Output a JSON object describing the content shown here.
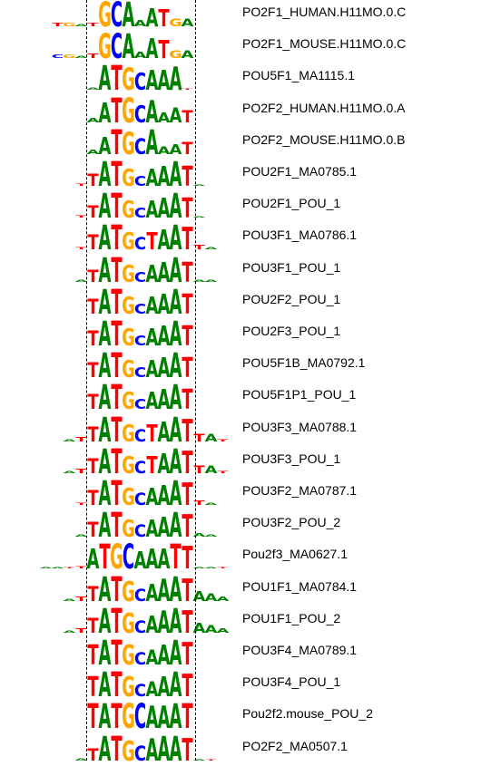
{
  "colors": {
    "A": "#008000",
    "C": "#0000ff",
    "G": "#ffa500",
    "T": "#ff0000"
  },
  "motifs": [
    {
      "name": "PO2F1_HUMAN.H11MO.0.C",
      "offset": 3,
      "seq": "TGATGCAAATGA",
      "heights": [
        0.15,
        0.15,
        0.1,
        0.15,
        1.0,
        1.0,
        1.0,
        0.25,
        0.75,
        0.7,
        0.3,
        0.3
      ]
    },
    {
      "name": "PO2F1_MOUSE.H11MO.0.C",
      "offset": 3,
      "seq": "CGATGCAAATGA",
      "heights": [
        0.15,
        0.15,
        0.1,
        0.2,
        1.0,
        1.0,
        1.0,
        0.25,
        0.8,
        0.75,
        0.3,
        0.3
      ]
    },
    {
      "name": "POU5F1_MA1115.1",
      "offset": 6,
      "seq": "AATGCAAAT",
      "heights": [
        0.1,
        1.0,
        1.0,
        0.9,
        0.7,
        0.8,
        0.8,
        0.95,
        0.05
      ]
    },
    {
      "name": "PO2F2_HUMAN.H11MO.0.A",
      "offset": 6,
      "seq": "AATGCAAAT",
      "heights": [
        0.2,
        0.8,
        1.0,
        1.0,
        0.7,
        0.9,
        0.4,
        0.6,
        0.5
      ]
    },
    {
      "name": "PO2F2_MOUSE.H11MO.0.B",
      "offset": 6,
      "seq": "AATGCAAAT",
      "heights": [
        0.2,
        0.7,
        1.0,
        0.9,
        0.65,
        1.0,
        0.3,
        0.4,
        0.5
      ]
    },
    {
      "name": "POU2F1_MA0785.1",
      "offset": 5,
      "seq": "TTATGCAAATA",
      "heights": [
        0.1,
        0.5,
        1.0,
        1.0,
        0.7,
        0.4,
        0.7,
        0.8,
        1.0,
        0.8,
        0.05
      ]
    },
    {
      "name": "POU2F1_POU_1",
      "offset": 5,
      "seq": "TTATGCAAATA",
      "heights": [
        0.1,
        0.5,
        1.0,
        1.0,
        0.7,
        0.4,
        0.7,
        0.8,
        1.0,
        0.8,
        0.05
      ]
    },
    {
      "name": "POU3F1_MA0786.1",
      "offset": 5,
      "seq": "TTATGCTAATTA",
      "heights": [
        0.1,
        0.6,
        1.0,
        1.0,
        0.7,
        0.5,
        0.7,
        0.8,
        1.0,
        0.9,
        0.2,
        0.1
      ]
    },
    {
      "name": "POU3F1_POU_1",
      "offset": 5,
      "seq": "ATATGCAAATAA",
      "heights": [
        0.1,
        0.5,
        1.0,
        1.0,
        0.7,
        0.4,
        0.7,
        0.8,
        1.0,
        0.8,
        0.1,
        0.1
      ]
    },
    {
      "name": "POU2F2_POU_1",
      "offset": 6,
      "seq": "TATGCAAAT",
      "heights": [
        0.6,
        1.0,
        1.0,
        0.7,
        0.4,
        0.7,
        0.8,
        1.0,
        0.8
      ]
    },
    {
      "name": "POU2F3_POU_1",
      "offset": 6,
      "seq": "TATGCAAAT",
      "heights": [
        0.6,
        1.0,
        1.0,
        0.7,
        0.4,
        0.7,
        0.8,
        1.0,
        0.8
      ]
    },
    {
      "name": "POU5F1B_MA0792.1",
      "offset": 6,
      "seq": "TATGCAAAT",
      "heights": [
        0.6,
        1.0,
        1.0,
        0.7,
        0.4,
        0.7,
        0.8,
        1.0,
        0.8
      ]
    },
    {
      "name": "POU5F1P1_POU_1",
      "offset": 6,
      "seq": "TATGCAAAT",
      "heights": [
        0.6,
        1.0,
        1.0,
        0.7,
        0.4,
        0.7,
        0.8,
        1.0,
        0.8
      ]
    },
    {
      "name": "POU3F3_MA0788.1",
      "offset": 4,
      "seq": "ATTATGCTAATTAT",
      "heights": [
        0.1,
        0.2,
        0.6,
        1.0,
        1.0,
        0.7,
        0.5,
        0.7,
        0.8,
        1.0,
        0.9,
        0.3,
        0.3,
        0.1
      ]
    },
    {
      "name": "POU3F3_POU_1",
      "offset": 4,
      "seq": "ATTATGCTAATTAT",
      "heights": [
        0.1,
        0.2,
        0.6,
        1.0,
        1.0,
        0.7,
        0.5,
        0.7,
        0.8,
        1.0,
        0.9,
        0.3,
        0.3,
        0.1
      ]
    },
    {
      "name": "POU3F2_MA0787.1",
      "offset": 5,
      "seq": "TTATGCAAATTA",
      "heights": [
        0.1,
        0.6,
        1.0,
        1.0,
        0.7,
        0.5,
        0.7,
        0.8,
        1.0,
        0.9,
        0.2,
        0.1
      ]
    },
    {
      "name": "POU3F2_POU_2",
      "offset": 5,
      "seq": "ATATGCAAATAA",
      "heights": [
        0.1,
        0.6,
        1.0,
        1.0,
        0.7,
        0.5,
        0.7,
        0.8,
        1.0,
        0.9,
        0.15,
        0.1
      ]
    },
    {
      "name": "Pou2f3_MA0627.1",
      "offset": 2,
      "seq": "AATTATGCAAATTAAT",
      "heights": [
        0.05,
        0.05,
        0.05,
        0.1,
        0.8,
        1.0,
        1.0,
        1.0,
        0.7,
        0.8,
        0.8,
        1.0,
        0.9,
        0.05,
        0.05,
        0.05
      ]
    },
    {
      "name": "POU1F1_MA0784.1",
      "offset": 4,
      "seq": "ATTATGCAAATAAA",
      "heights": [
        0.1,
        0.2,
        0.6,
        1.0,
        1.0,
        0.8,
        0.5,
        0.7,
        0.9,
        1.0,
        0.9,
        0.4,
        0.3,
        0.2
      ]
    },
    {
      "name": "POU1F1_POU_2",
      "offset": 4,
      "seq": "ATTATGCAAATAAA",
      "heights": [
        0.1,
        0.2,
        0.6,
        1.0,
        1.0,
        0.8,
        0.5,
        0.7,
        0.9,
        1.0,
        0.9,
        0.4,
        0.3,
        0.2
      ]
    },
    {
      "name": "POU3F4_MA0789.1",
      "offset": 6,
      "seq": "TATGCAAAT",
      "heights": [
        0.8,
        1.0,
        1.0,
        0.8,
        0.5,
        0.6,
        0.8,
        1.0,
        0.9
      ]
    },
    {
      "name": "POU3F4_POU_1",
      "offset": 6,
      "seq": "TATGCAAAT",
      "heights": [
        0.8,
        1.0,
        1.0,
        0.8,
        0.5,
        0.6,
        0.8,
        1.0,
        0.9
      ]
    },
    {
      "name": "Pou2f2.mouse_POU_2",
      "offset": 6,
      "seq": "TATGCAAAT",
      "heights": [
        1.0,
        1.0,
        1.0,
        1.0,
        1.0,
        0.9,
        0.9,
        1.0,
        1.0
      ]
    },
    {
      "name": "PO2F2_MA0507.1",
      "offset": 5,
      "seq": "ATATGCAAATAT",
      "heights": [
        0.1,
        0.5,
        1.0,
        1.0,
        0.8,
        0.6,
        0.9,
        1.0,
        1.0,
        0.9,
        0.05,
        0.05
      ]
    }
  ]
}
